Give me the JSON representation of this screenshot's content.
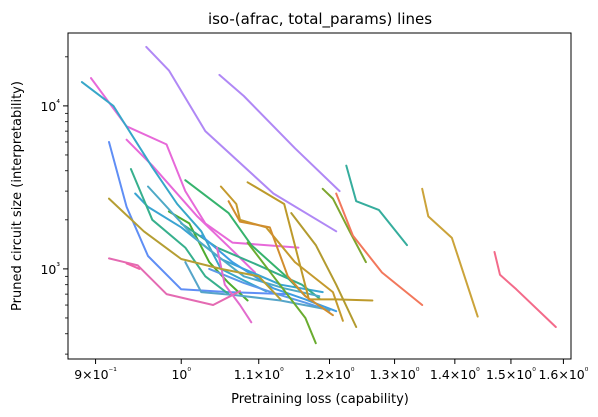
{
  "chart_data": {
    "type": "line",
    "title": "iso-(afrac, total_params) lines",
    "xlabel": "Pretraining loss (capability)",
    "ylabel": "Pruned circuit size (interpretability)",
    "xscale": "log",
    "yscale": "log",
    "xlim": [
      0.87,
      1.615
    ],
    "ylim": [
      280,
      28000
    ],
    "grid": false,
    "x_ticks": [
      {
        "value": 0.9,
        "label": "9×10⁻¹"
      },
      {
        "value": 1.0,
        "label": "10⁰"
      },
      {
        "value": 1.1,
        "label": "1.1×10⁰"
      },
      {
        "value": 1.2,
        "label": "1.2×10⁰"
      },
      {
        "value": 1.3,
        "label": "1.3×10⁰"
      },
      {
        "value": 1.4,
        "label": "1.4×10⁰"
      },
      {
        "value": 1.5,
        "label": "1.5×10⁰"
      },
      {
        "value": 1.6,
        "label": "1.6×10⁰"
      }
    ],
    "y_ticks": [
      {
        "value": 1000,
        "label": "10³"
      },
      {
        "value": 10000,
        "label": "10⁴"
      }
    ],
    "series": [
      {
        "color": "#b088f5",
        "x": [
          0.958,
          0.985,
          1.03,
          1.12,
          1.21
        ],
        "y": [
          23000,
          16500,
          7000,
          2900,
          1700
        ]
      },
      {
        "color": "#b088f5",
        "x": [
          1.048,
          1.08,
          1.15,
          1.215
        ],
        "y": [
          15500,
          11500,
          5500,
          3000
        ]
      },
      {
        "color": "#e769d9",
        "x": [
          0.895,
          0.935,
          0.982,
          1.005,
          1.03,
          1.065,
          1.155
        ],
        "y": [
          14800,
          7500,
          5800,
          3000,
          1900,
          1450,
          1350
        ]
      },
      {
        "color": "#e769d9",
        "x": [
          0.935,
          0.965,
          1.02,
          1.065,
          1.095
        ],
        "y": [
          6200,
          4300,
          2100,
          1300,
          950
        ]
      },
      {
        "color": "#37a7c9",
        "x": [
          0.885,
          0.92,
          0.965,
          0.995,
          1.025,
          1.05,
          1.08,
          1.11
        ],
        "y": [
          14000,
          10000,
          4200,
          2500,
          1700,
          1000,
          850,
          730
        ]
      },
      {
        "color": "#5f8ef5",
        "x": [
          0.915,
          0.935,
          0.96,
          1.0,
          1.06,
          1.14
        ],
        "y": [
          6000,
          2400,
          1200,
          750,
          720,
          700
        ]
      },
      {
        "color": "#3aa4d2",
        "x": [
          0.945,
          0.96,
          1.0,
          1.05,
          1.13,
          1.19
        ],
        "y": [
          2900,
          2400,
          1800,
          1150,
          800,
          720
        ]
      },
      {
        "color": "#37b08d",
        "x": [
          0.94,
          0.965,
          1.005,
          1.03,
          1.06
        ],
        "y": [
          4100,
          2000,
          1350,
          900,
          700
        ]
      },
      {
        "color": "#4dac2f",
        "x": [
          0.985,
          1.01,
          1.035,
          1.06,
          1.085
        ],
        "y": [
          2250,
          1900,
          1100,
          820,
          640
        ]
      },
      {
        "color": "#36b36d",
        "x": [
          1.005,
          1.06,
          1.09,
          1.14,
          1.165
        ],
        "y": [
          3500,
          2200,
          1400,
          880,
          680
        ]
      },
      {
        "color": "#36ad8a",
        "x": [
          1.0,
          1.045,
          1.1,
          1.16,
          1.185
        ],
        "y": [
          1900,
          1350,
          1050,
          800,
          660
        ]
      },
      {
        "color": "#4ea9c6",
        "x": [
          0.96,
          1.02,
          1.08,
          1.135,
          1.185
        ],
        "y": [
          3200,
          1500,
          900,
          760,
          680
        ]
      },
      {
        "color": "#3e9de3",
        "x": [
          1.025,
          1.065,
          1.12,
          1.165,
          1.21
        ],
        "y": [
          1600,
          1100,
          760,
          650,
          550
        ]
      },
      {
        "color": "#5a99e8",
        "x": [
          1.035,
          1.08,
          1.125,
          1.165,
          1.2
        ],
        "y": [
          1000,
          820,
          700,
          620,
          555
        ]
      },
      {
        "color": "#56a5c9",
        "x": [
          1.005,
          1.025,
          1.07,
          1.13,
          1.2
        ],
        "y": [
          1100,
          720,
          690,
          640,
          560
        ]
      },
      {
        "color": "#e46ab2",
        "x": [
          0.915,
          0.948,
          0.982,
          1.04,
          1.075
        ],
        "y": [
          1160,
          1050,
          700,
          600,
          730
        ]
      },
      {
        "color": "#ee64a8",
        "x": [
          0.935,
          0.95
        ],
        "y": [
          1080,
          1000
        ]
      },
      {
        "color": "#e26bcd",
        "x": [
          1.045,
          1.055,
          1.075,
          1.09
        ],
        "y": [
          1350,
          800,
          600,
          470
        ]
      },
      {
        "color": "#b59e33",
        "x": [
          0.915,
          0.955,
          1.0,
          1.05,
          1.1,
          1.13
        ],
        "y": [
          2700,
          1700,
          1150,
          1000,
          900,
          650
        ]
      },
      {
        "color": "#c49a2e",
        "x": [
          1.05,
          1.07,
          1.075,
          1.11,
          1.15,
          1.205,
          1.22
        ],
        "y": [
          3200,
          2500,
          2000,
          1800,
          1100,
          720,
          480
        ]
      },
      {
        "color": "#bd9a2b",
        "x": [
          1.085,
          1.135,
          1.17,
          1.21,
          1.265
        ],
        "y": [
          3400,
          2500,
          650,
          650,
          640
        ]
      },
      {
        "color": "#d18d2e",
        "x": [
          1.06,
          1.075,
          1.115,
          1.14,
          1.165,
          1.205
        ],
        "y": [
          2600,
          1950,
          1800,
          900,
          680,
          520
        ]
      },
      {
        "color": "#b39b2f",
        "x": [
          1.145,
          1.18,
          1.21,
          1.24
        ],
        "y": [
          2200,
          1400,
          800,
          440
        ]
      },
      {
        "color": "#7ea62f",
        "x": [
          1.19,
          1.205,
          1.23,
          1.255
        ],
        "y": [
          3100,
          2700,
          1700,
          1100
        ]
      },
      {
        "color": "#6aac2f",
        "x": [
          1.085,
          1.12,
          1.165,
          1.18
        ],
        "y": [
          1450,
          900,
          500,
          350
        ]
      },
      {
        "color": "#36ad9d",
        "x": [
          1.225,
          1.24,
          1.275,
          1.32
        ],
        "y": [
          4300,
          2600,
          2300,
          1400
        ]
      },
      {
        "color": "#f2785c",
        "x": [
          1.21,
          1.235,
          1.28,
          1.345
        ],
        "y": [
          2900,
          1600,
          950,
          600
        ]
      },
      {
        "color": "#cba33a",
        "x": [
          1.345,
          1.355,
          1.395,
          1.44
        ],
        "y": [
          3100,
          2100,
          1550,
          510
        ]
      },
      {
        "color": "#f36b8a",
        "x": [
          1.47,
          1.48,
          1.51,
          1.585
        ],
        "y": [
          1270,
          920,
          750,
          440
        ]
      }
    ]
  }
}
